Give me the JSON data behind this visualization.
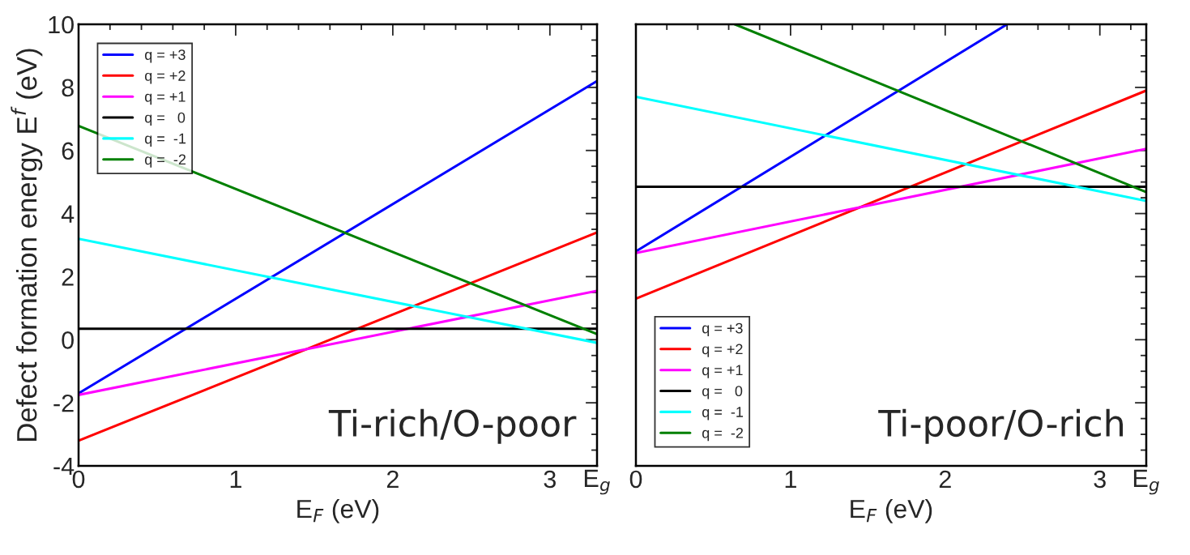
{
  "chart_data": [
    {
      "type": "line",
      "xlabel": "E$_{F}$ (eV)",
      "ylabel": "Defect formation energy E$^{f}$ (eV)",
      "xlim": [
        0,
        3.3
      ],
      "ylim": [
        -4,
        10
      ],
      "xticks": [
        0,
        1,
        2,
        3,
        {
          "value": 3.3,
          "label": "E$_{g}$"
        }
      ],
      "yticks": [
        -4,
        -2,
        0,
        2,
        4,
        6,
        8,
        10
      ],
      "legend": "top left",
      "grid": false,
      "marker": "none",
      "line_style": "solid",
      "annotations": [
        "Ti-rich/O-poor"
      ],
      "series": [
        {
          "name": "q = +3",
          "color": "#0000ff",
          "x": [
            0,
            3.3
          ],
          "values": [
            -1.7,
            8.2
          ]
        },
        {
          "name": "q = +2",
          "color": "#ff0000",
          "x": [
            0,
            3.3
          ],
          "values": [
            -3.2,
            3.4
          ]
        },
        {
          "name": "q = +1",
          "color": "#ff00ff",
          "x": [
            0,
            3.3
          ],
          "values": [
            -1.75,
            1.55
          ]
        },
        {
          "name": "q =   0",
          "color": "#000000",
          "x": [
            0,
            3.3
          ],
          "values": [
            0.35,
            0.35
          ]
        },
        {
          "name": "q =  -1",
          "color": "#00ffff",
          "x": [
            0,
            3.3
          ],
          "values": [
            3.2,
            -0.1
          ]
        },
        {
          "name": "q =  -2",
          "color": "#008000",
          "x": [
            0,
            3.3
          ],
          "values": [
            6.78,
            0.18
          ]
        }
      ]
    },
    {
      "type": "line",
      "xlabel": "E$_{F}$ (eV)",
      "xlim": [
        0,
        3.3
      ],
      "ylim": [
        -4,
        10
      ],
      "xticks": [
        0,
        1,
        2,
        3,
        {
          "value": 3.3,
          "label": "E$_{g}$"
        }
      ],
      "yticks": [
        -4,
        -2,
        0,
        2,
        4,
        6,
        8,
        10
      ],
      "tick_labels": "x",
      "legend": "bottom left",
      "grid": false,
      "marker": "none",
      "line_style": "solid",
      "annotations": [
        "Ti-poor/O-rich"
      ],
      "series": [
        {
          "name": "q = +3",
          "color": "#0000ff",
          "x": [
            0,
            2.4
          ],
          "values": [
            2.8,
            10
          ]
        },
        {
          "name": "q = +2",
          "color": "#ff0000",
          "x": [
            0,
            3.3
          ],
          "values": [
            1.3,
            7.9
          ]
        },
        {
          "name": "q = +1",
          "color": "#ff00ff",
          "x": [
            0,
            3.3
          ],
          "values": [
            2.75,
            6.05
          ]
        },
        {
          "name": "q =   0",
          "color": "#000000",
          "x": [
            0,
            3.3
          ],
          "values": [
            4.85,
            4.85
          ]
        },
        {
          "name": "q =  -1",
          "color": "#00ffff",
          "x": [
            0,
            3.3
          ],
          "values": [
            7.7,
            4.4
          ]
        },
        {
          "name": "q =  -2",
          "color": "#008000",
          "x": [
            0.64,
            3.3
          ],
          "values": [
            10,
            4.68
          ]
        }
      ]
    }
  ]
}
